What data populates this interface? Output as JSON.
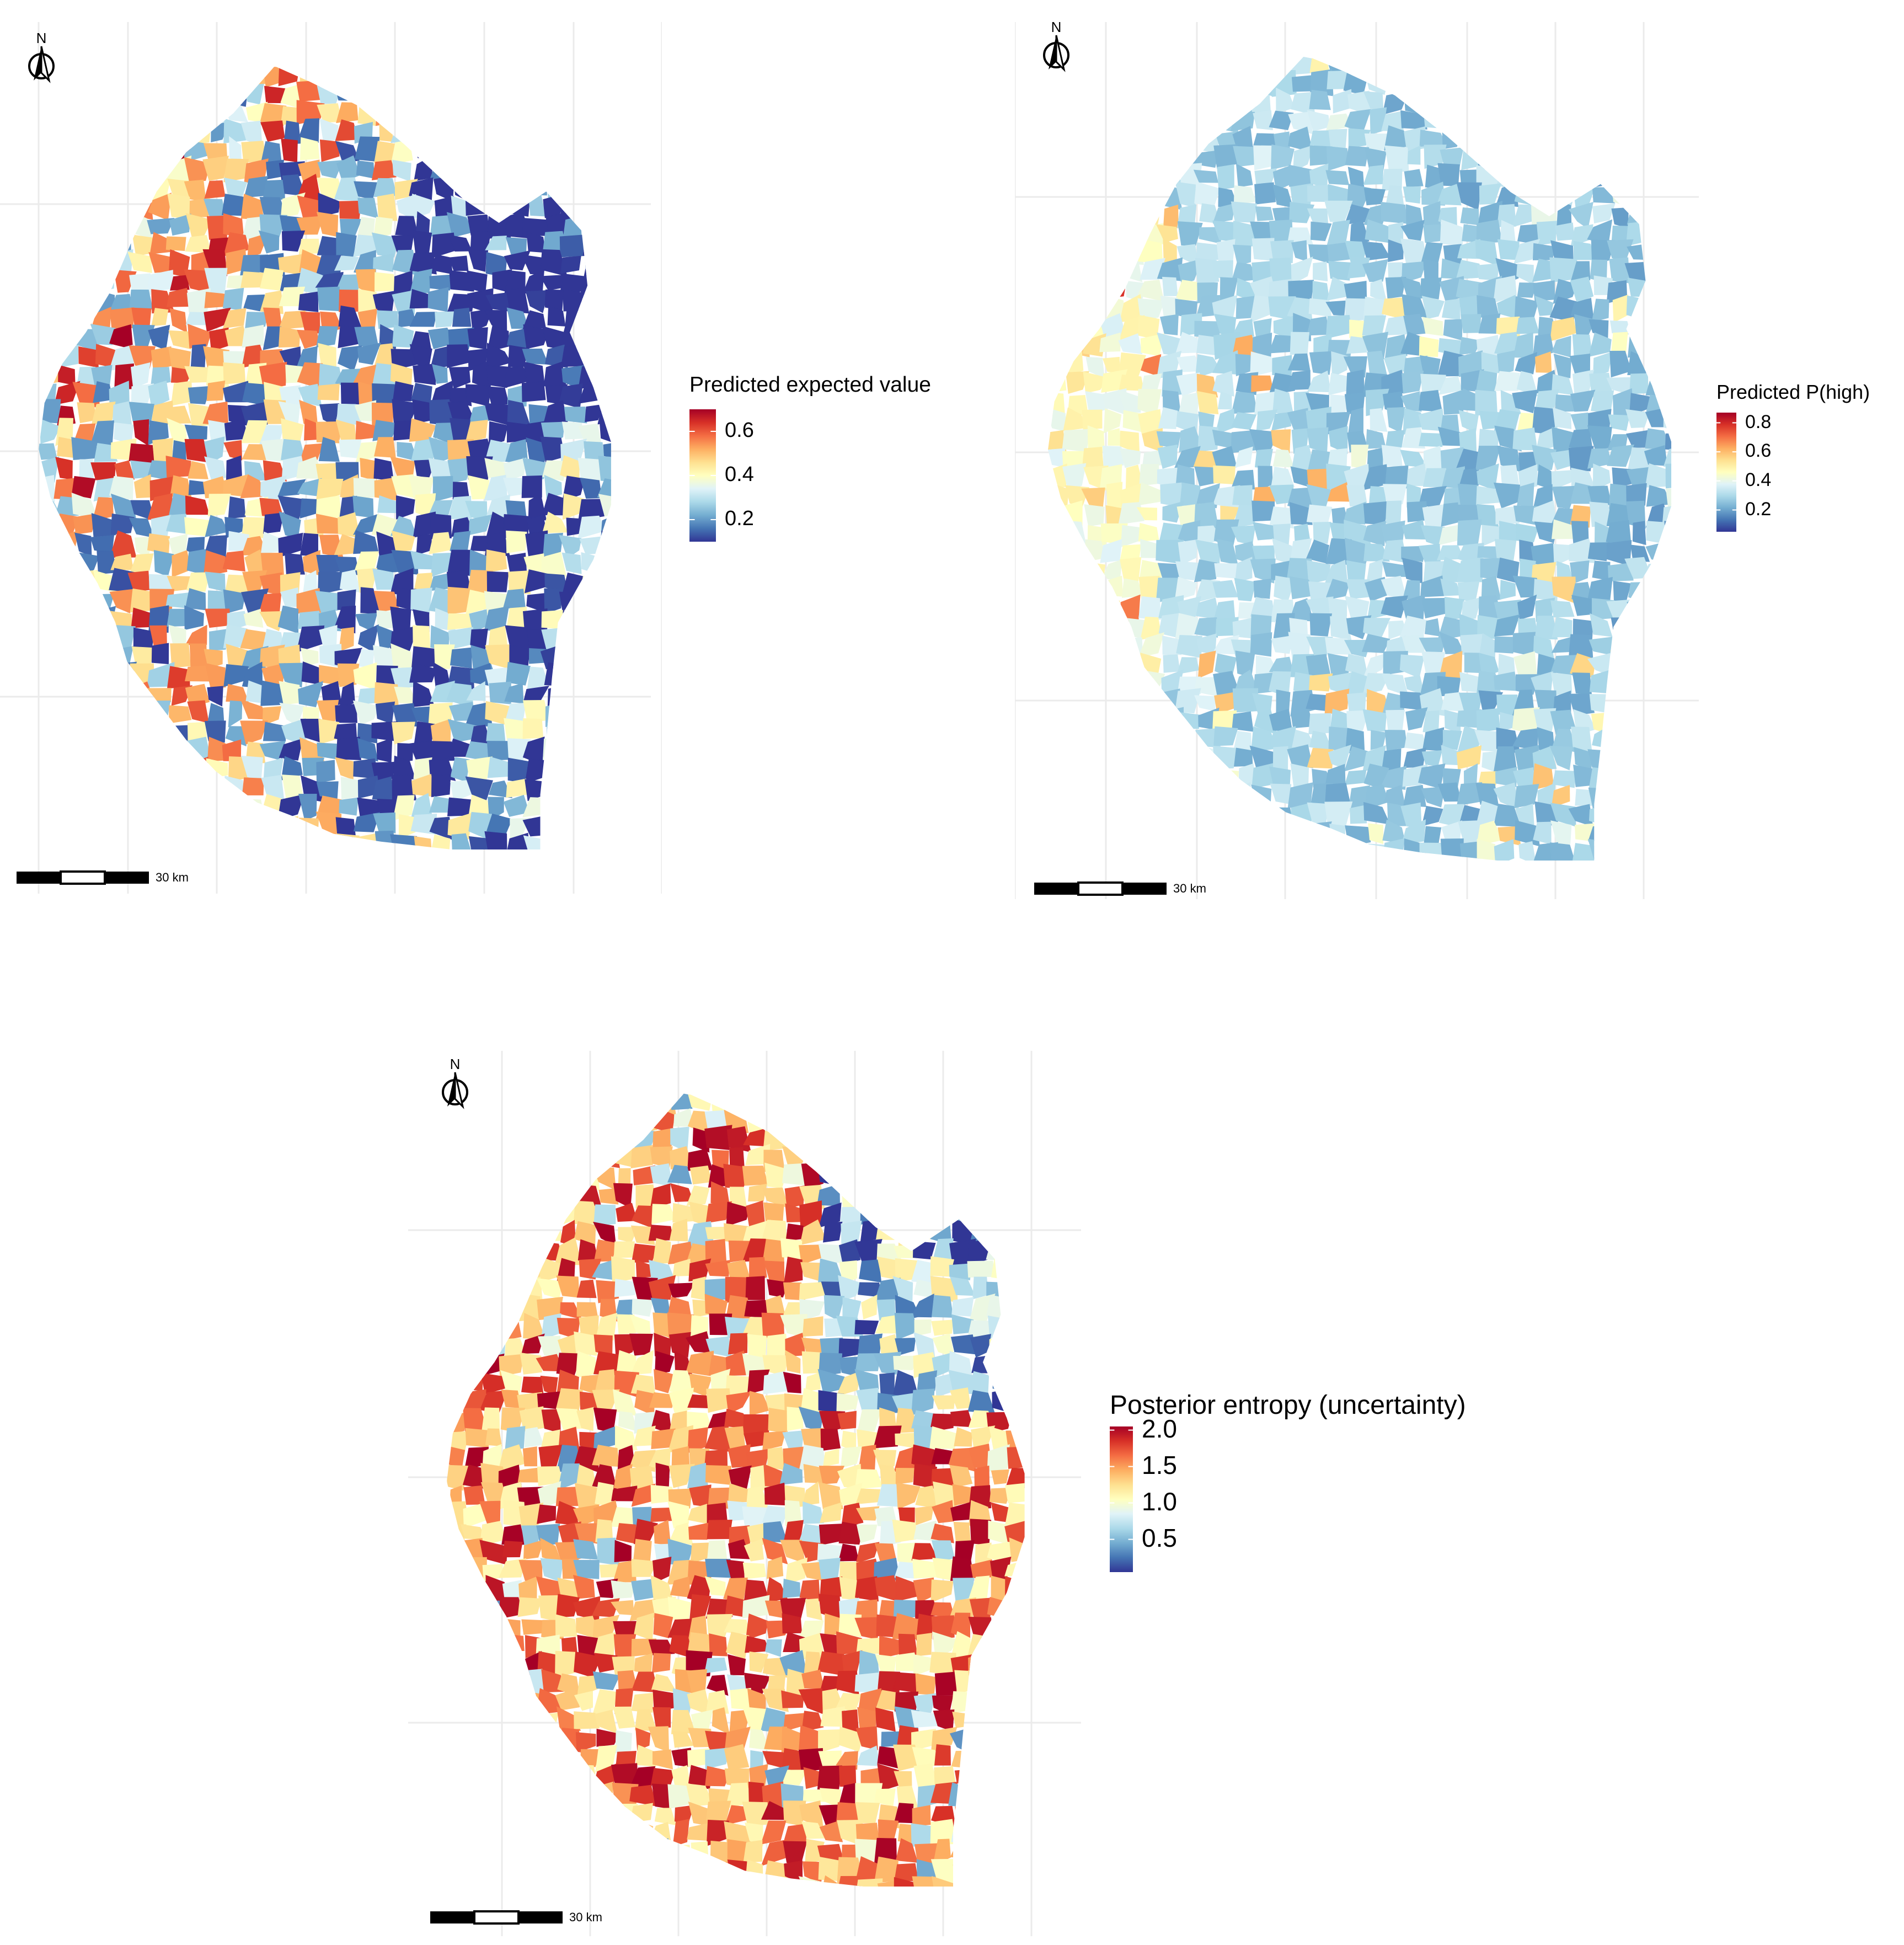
{
  "maps": [
    {
      "id": "expected",
      "legend": {
        "title": "Predicted expected value",
        "ticks": [
          "0.6",
          "0.4",
          "0.2"
        ],
        "tick_values": [
          0.6,
          0.4,
          0.2
        ],
        "range": [
          0.1,
          0.7
        ]
      },
      "north_label": "N",
      "scale_label": "30 km",
      "palette": "RdYlBu reversed",
      "dominant": "mixed blue / orange"
    },
    {
      "id": "p_high",
      "legend": {
        "title": "Predicted P(high)",
        "ticks": [
          "0.8",
          "0.6",
          "0.4",
          "0.2"
        ],
        "tick_values": [
          0.8,
          0.6,
          0.4,
          0.2
        ],
        "range": [
          0.05,
          0.87
        ]
      },
      "north_label": "N",
      "scale_label": "30 km",
      "palette": "RdYlBu reversed",
      "dominant": "dark blue"
    },
    {
      "id": "entropy",
      "legend": {
        "title": "Posterior entropy (uncertainty)",
        "ticks": [
          "2.0",
          "1.5",
          "1.0",
          "0.5"
        ],
        "tick_values": [
          2.0,
          1.5,
          1.0,
          0.5
        ],
        "range": [
          0.05,
          2.05
        ]
      },
      "north_label": "N",
      "scale_label": "30 km",
      "palette": "RdYlBu reversed",
      "dominant": "red / orange"
    }
  ],
  "colors": {
    "ramp": [
      "#313695",
      "#4575b4",
      "#74add1",
      "#abd9e9",
      "#e0f3f8",
      "#ffffbf",
      "#fee090",
      "#fdae61",
      "#f46d43",
      "#d73027",
      "#a50026"
    ],
    "grid": "#ebebeb",
    "background": "#ffffff"
  }
}
